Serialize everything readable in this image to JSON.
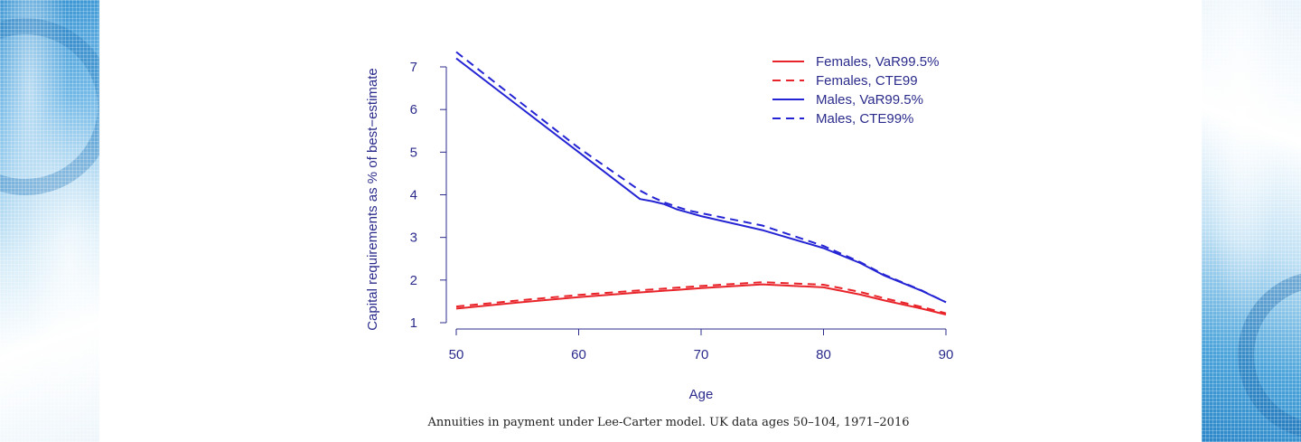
{
  "caption": "Annuities in payment under Lee-Carter model. UK data ages 50–104, 1971–2016",
  "colors": {
    "axis": "#2b2b8c",
    "red": "#e8242a",
    "blue": "#2424d4"
  },
  "chart_data": {
    "type": "line",
    "title": "",
    "xlabel": "Age",
    "ylabel": "Capital requirements as % of best−estimate",
    "xlim": [
      50,
      90
    ],
    "ylim": [
      1,
      7
    ],
    "xticks": [
      50,
      60,
      70,
      80,
      90
    ],
    "yticks": [
      1,
      2,
      3,
      4,
      5,
      6,
      7
    ],
    "grid": false,
    "legend_position": "top-right",
    "x": [
      50,
      55,
      60,
      65,
      66,
      67,
      68,
      69,
      70,
      75,
      80,
      83,
      85,
      88,
      90
    ],
    "series": [
      {
        "name": "Females, VaR99.5%",
        "style": "solid",
        "color": "#e8242a",
        "values": [
          1.33,
          1.47,
          1.6,
          1.71,
          1.73,
          1.75,
          1.77,
          1.79,
          1.81,
          1.9,
          1.83,
          1.66,
          1.52,
          1.33,
          1.19
        ]
      },
      {
        "name": "Females, CTE99",
        "style": "dashed",
        "color": "#e8242a",
        "values": [
          1.38,
          1.52,
          1.65,
          1.76,
          1.78,
          1.8,
          1.82,
          1.84,
          1.86,
          1.95,
          1.89,
          1.72,
          1.57,
          1.37,
          1.22
        ]
      },
      {
        "name": "Males, VaR99.5%",
        "style": "solid",
        "color": "#2424d4",
        "values": [
          7.2,
          6.1,
          5.0,
          3.9,
          3.85,
          3.78,
          3.66,
          3.58,
          3.5,
          3.17,
          2.75,
          2.4,
          2.1,
          1.75,
          1.48
        ]
      },
      {
        "name": "Males, CTE99%",
        "style": "dashed",
        "color": "#2424d4",
        "values": [
          7.35,
          6.22,
          5.1,
          4.1,
          3.95,
          3.82,
          3.72,
          3.63,
          3.57,
          3.28,
          2.8,
          2.42,
          2.12,
          1.76,
          1.48
        ]
      }
    ]
  }
}
